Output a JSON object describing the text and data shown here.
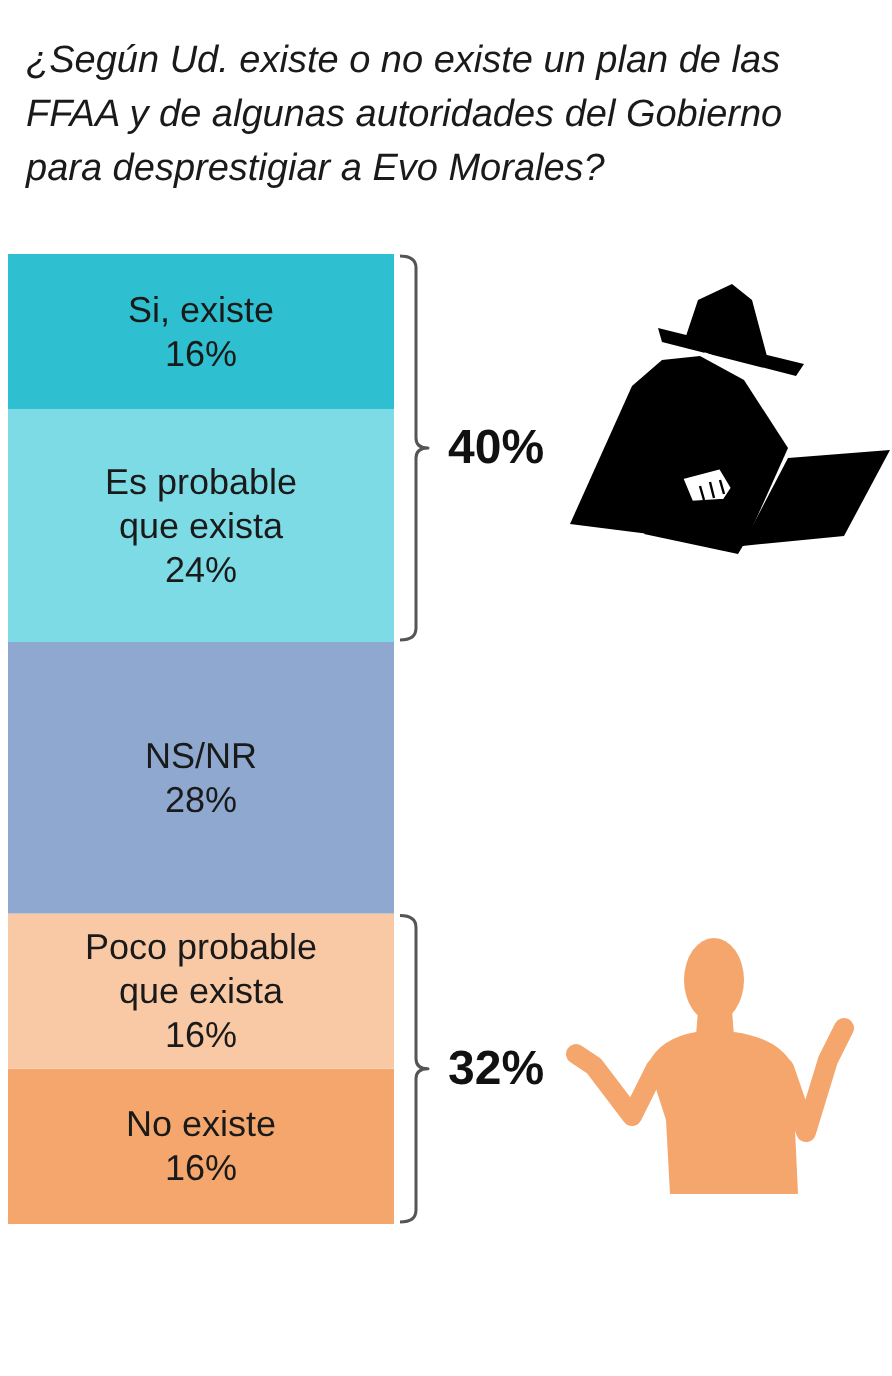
{
  "chart_data": {
    "type": "bar",
    "title": "¿Según Ud. existe o no existe un plan de las FFAA y de algunas autoridades del Gobierno para desprestigiar a Evo Morales?",
    "categories": [
      null
    ],
    "stacked": true,
    "series": [
      {
        "name": "No existe",
        "color": "#f5a66c",
        "values": [
          16
        ],
        "value_labels": [
          "16%"
        ]
      },
      {
        "name": "Poco probable que exista",
        "color": "#f9c9a6",
        "values": [
          16
        ],
        "value_labels": [
          "16%"
        ]
      },
      {
        "name": "NS/NR",
        "color": "#8fa8d0",
        "values": [
          28
        ],
        "value_labels": [
          "28%"
        ]
      },
      {
        "name": "Es probable que exista",
        "color": "#7ddbe5",
        "values": [
          24
        ],
        "value_labels": [
          "24%"
        ]
      },
      {
        "name": "Si, existe",
        "color": "#2ec0d0",
        "values": [
          16
        ],
        "value_labels": [
          "16%"
        ]
      }
    ],
    "annotations": [
      "40%",
      "32%"
    ]
  }
}
